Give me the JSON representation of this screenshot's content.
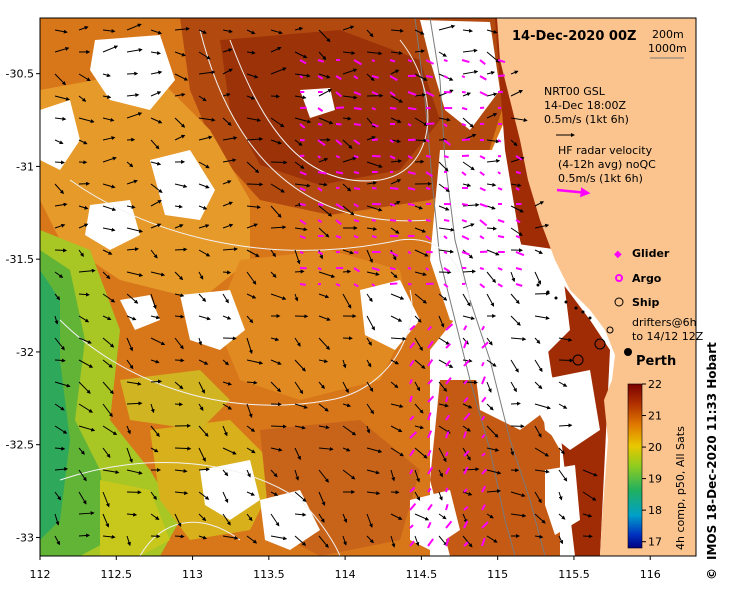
{
  "map": {
    "title": "14-Dec-2020 00Z",
    "depth_contours": [
      "200m",
      "1000m"
    ],
    "model_legend": [
      "NRT00 GSL",
      "14-Dec 18:00Z",
      "0.5m/s (1kt 6h)"
    ],
    "radar_legend": [
      "HF radar velocity",
      "(4-12h avg) noQC",
      "0.5m/s (1kt 6h)"
    ],
    "glider_label": "Glider",
    "argo_label": "Argo",
    "ship_label": "Ship",
    "drifters_label": [
      "drifters@6h",
      "to 14/12 12Z"
    ],
    "city_label": "Perth",
    "colorbar_caption": "4h comp, p50, All Sats",
    "credit": "IMOS 18-Dec-2020 11:33 Hobart",
    "copyright": "©",
    "colors": {
      "land": "#fbc48f",
      "glider": "#ff00ff",
      "radar_arrow": "#ff00ff",
      "model_arrow": "#000000"
    }
  },
  "chart_data": {
    "type": "heatmap",
    "xlabel": "",
    "ylabel": "",
    "xlim": [
      112,
      116.3
    ],
    "ylim": [
      -33.1,
      -30.2
    ],
    "x_ticks": [
      "112",
      "112.5",
      "113",
      "113.5",
      "114",
      "114.5",
      "115",
      "115.5",
      "116"
    ],
    "y_ticks": [
      "-30.5",
      "-31",
      "-31.5",
      "-32",
      "-32.5",
      "-33"
    ],
    "colorbar": {
      "ticks": [
        "17",
        "18",
        "19",
        "20",
        "21",
        "22"
      ],
      "range": [
        16.8,
        22
      ],
      "units_caption": "4h comp, p50, All Sats"
    }
  }
}
